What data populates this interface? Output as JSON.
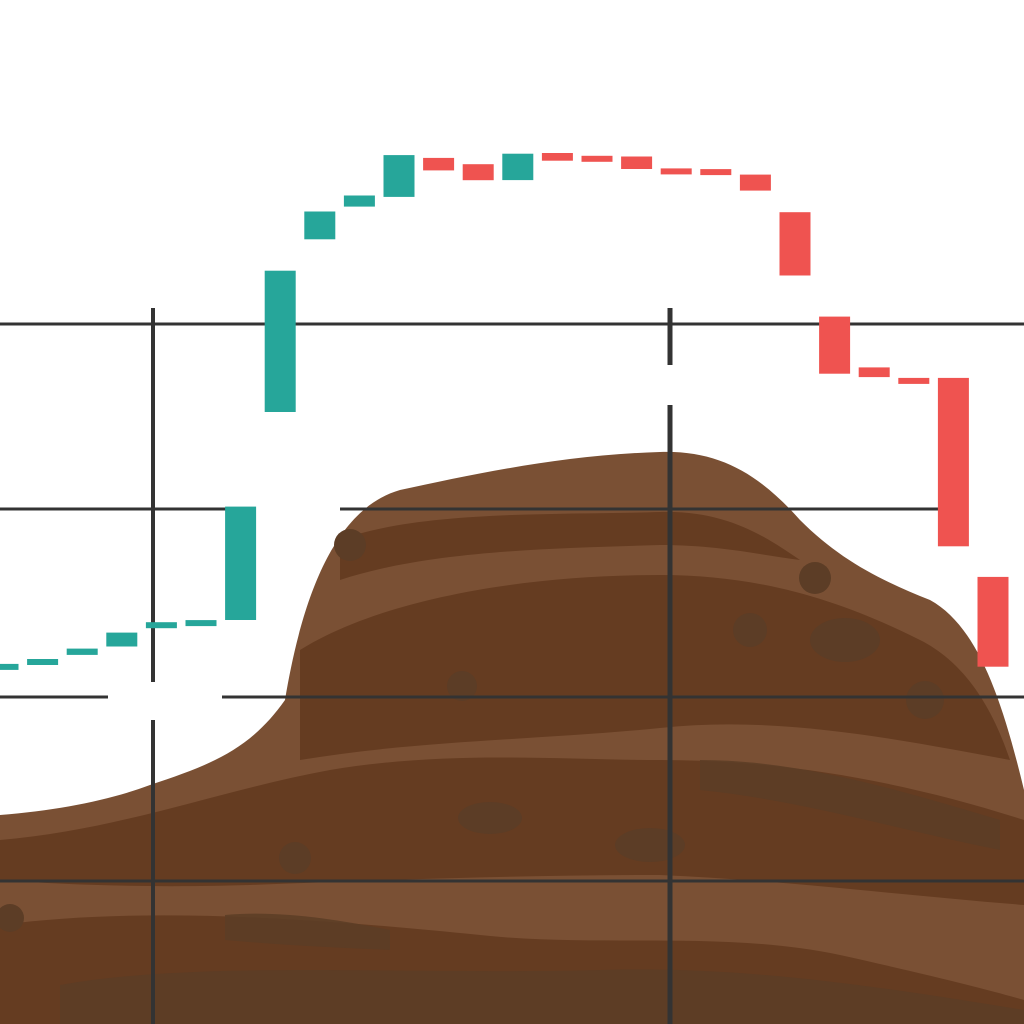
{
  "chart_data": {
    "type": "candlestick",
    "title": "",
    "xlabel": "",
    "ylabel": "",
    "grid": true,
    "ylim": [
      0,
      100
    ],
    "candles": [
      {
        "open": 24.9,
        "close": 25.3
      },
      {
        "open": 25.5,
        "close": 26.0
      },
      {
        "open": 26.6,
        "close": 27.5
      },
      {
        "open": 27.8,
        "close": 29.8
      },
      {
        "open": 30.8,
        "close": 31.3
      },
      {
        "open": 31.4,
        "close": 31.6
      },
      {
        "open": 31.6,
        "close": 47.9
      },
      {
        "open": 61.5,
        "close": 81.8
      },
      {
        "open": 86.3,
        "close": 90.3
      },
      {
        "open": 91.0,
        "close": 92.6
      },
      {
        "open": 92.4,
        "close": 98.4
      },
      {
        "open": 98.0,
        "close": 96.2
      },
      {
        "open": 97.1,
        "close": 94.8
      },
      {
        "open": 94.8,
        "close": 98.6
      },
      {
        "open": 98.7,
        "close": 97.6
      },
      {
        "open": 98.3,
        "close": 97.6
      },
      {
        "open": 98.2,
        "close": 96.4
      },
      {
        "open": 96.5,
        "close": 96.2
      },
      {
        "open": 96.4,
        "close": 95.7
      },
      {
        "open": 95.6,
        "close": 93.3
      },
      {
        "open": 90.2,
        "close": 81.1
      },
      {
        "open": 75.2,
        "close": 67.0
      },
      {
        "open": 67.9,
        "close": 66.5
      },
      {
        "open": 66.4,
        "close": 65.6
      },
      {
        "open": 66.4,
        "close": 42.2
      },
      {
        "open": 37.8,
        "close": 24.9
      }
    ],
    "colors": {
      "up": "#26a69a",
      "down": "#ef5350",
      "grid": "#333333",
      "terrain_dark": "#653c21",
      "terrain_mid": "#5c3d26",
      "terrain_light": "#7a5034"
    }
  }
}
